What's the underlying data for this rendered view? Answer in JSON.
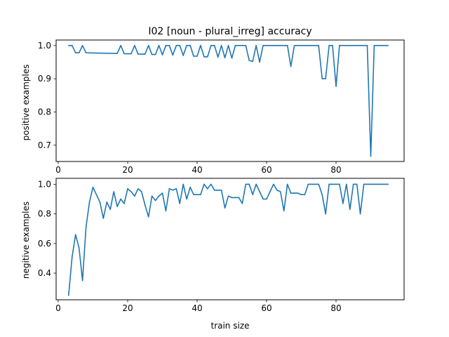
{
  "chart_data": [
    {
      "type": "line",
      "title": "I02 [noun - plural_irreg] accuracy",
      "xlabel": "",
      "ylabel": "positive examples",
      "xlim": [
        -0.6,
        99.6
      ],
      "ylim": [
        0.651,
        1.0165
      ],
      "xticks": [
        "0",
        "20",
        "40",
        "60",
        "80"
      ],
      "yticks": [
        "0.7",
        "0.8",
        "0.9",
        "1.0"
      ],
      "ytick_values": [
        0.7,
        0.8,
        0.9,
        1.0
      ],
      "grid": false,
      "color": "#1f77b4",
      "points": [
        [
          3,
          1.0
        ],
        [
          4,
          1.0
        ],
        [
          5,
          0.978
        ],
        [
          6,
          0.978
        ],
        [
          7,
          1.0
        ],
        [
          8,
          0.978
        ],
        [
          17,
          0.976
        ],
        [
          18,
          1.0
        ],
        [
          19,
          0.975
        ],
        [
          20,
          0.975
        ],
        [
          21,
          0.975
        ],
        [
          22,
          1.0
        ],
        [
          23,
          0.974
        ],
        [
          24,
          0.974
        ],
        [
          25,
          0.974
        ],
        [
          26,
          1.0
        ],
        [
          27,
          0.973
        ],
        [
          28,
          0.973
        ],
        [
          29,
          1.0
        ],
        [
          30,
          0.972
        ],
        [
          31,
          1.0
        ],
        [
          32,
          1.0
        ],
        [
          33,
          0.971
        ],
        [
          34,
          1.0
        ],
        [
          35,
          1.0
        ],
        [
          36,
          0.97
        ],
        [
          37,
          1.0
        ],
        [
          38,
          1.0
        ],
        [
          39,
          0.968
        ],
        [
          40,
          0.968
        ],
        [
          41,
          1.0
        ],
        [
          42,
          0.966
        ],
        [
          43,
          0.966
        ],
        [
          44,
          1.0
        ],
        [
          45,
          1.0
        ],
        [
          46,
          0.965
        ],
        [
          47,
          1.0
        ],
        [
          48,
          0.963
        ],
        [
          49,
          1.0
        ],
        [
          50,
          0.962
        ],
        [
          51,
          1.0
        ],
        [
          52,
          1.0
        ],
        [
          53,
          1.0
        ],
        [
          54,
          1.0
        ],
        [
          55,
          0.955
        ],
        [
          56,
          0.952
        ],
        [
          57,
          1.0
        ],
        [
          58,
          0.95
        ],
        [
          59,
          1.0
        ],
        [
          60,
          1.0
        ],
        [
          61,
          1.0
        ],
        [
          62,
          1.0
        ],
        [
          63,
          1.0
        ],
        [
          64,
          1.0
        ],
        [
          65,
          1.0
        ],
        [
          66,
          1.0
        ],
        [
          67,
          0.937
        ],
        [
          68,
          1.0
        ],
        [
          69,
          1.0
        ],
        [
          70,
          1.0
        ],
        [
          71,
          1.0
        ],
        [
          72,
          1.0
        ],
        [
          73,
          1.0
        ],
        [
          74,
          1.0
        ],
        [
          75,
          1.0
        ],
        [
          76,
          0.9
        ],
        [
          77,
          0.9
        ],
        [
          78,
          1.0
        ],
        [
          79,
          1.0
        ],
        [
          80,
          0.877
        ],
        [
          81,
          1.0
        ],
        [
          82,
          1.0
        ],
        [
          83,
          1.0
        ],
        [
          84,
          1.0
        ],
        [
          85,
          1.0
        ],
        [
          86,
          1.0
        ],
        [
          87,
          1.0
        ],
        [
          88,
          1.0
        ],
        [
          89,
          1.0
        ],
        [
          90,
          0.667
        ],
        [
          91,
          1.0
        ],
        [
          92,
          1.0
        ],
        [
          93,
          1.0
        ],
        [
          94,
          1.0
        ],
        [
          95,
          1.0
        ]
      ]
    },
    {
      "type": "line",
      "title": "",
      "xlabel": "train size",
      "ylabel": "negitive examples",
      "xlim": [
        -0.6,
        99.6
      ],
      "ylim": [
        0.22,
        1.04
      ],
      "xticks": [
        "0",
        "20",
        "40",
        "60",
        "80"
      ],
      "yticks": [
        "0.4",
        "0.6",
        "0.8",
        "1.0"
      ],
      "ytick_values": [
        0.4,
        0.6,
        0.8,
        1.0
      ],
      "grid": false,
      "color": "#1f77b4",
      "points": [
        [
          3,
          0.25
        ],
        [
          4,
          0.51
        ],
        [
          5,
          0.66
        ],
        [
          6,
          0.57
        ],
        [
          7,
          0.35
        ],
        [
          8,
          0.71
        ],
        [
          9,
          0.88
        ],
        [
          10,
          0.98
        ],
        [
          11,
          0.93
        ],
        [
          12,
          0.88
        ],
        [
          13,
          0.77
        ],
        [
          14,
          0.88
        ],
        [
          15,
          0.83
        ],
        [
          16,
          0.95
        ],
        [
          17,
          0.85
        ],
        [
          18,
          0.9
        ],
        [
          19,
          0.87
        ],
        [
          20,
          0.97
        ],
        [
          21,
          0.95
        ],
        [
          22,
          0.92
        ],
        [
          23,
          0.97
        ],
        [
          24,
          0.95
        ],
        [
          25,
          0.86
        ],
        [
          26,
          0.78
        ],
        [
          27,
          0.92
        ],
        [
          28,
          0.89
        ],
        [
          29,
          0.92
        ],
        [
          30,
          0.94
        ],
        [
          31,
          0.82
        ],
        [
          32,
          0.97
        ],
        [
          33,
          0.96
        ],
        [
          34,
          0.97
        ],
        [
          35,
          0.87
        ],
        [
          36,
          1.0
        ],
        [
          37,
          0.9
        ],
        [
          38,
          0.98
        ],
        [
          39,
          0.93
        ],
        [
          40,
          0.93
        ],
        [
          41,
          0.93
        ],
        [
          42,
          1.0
        ],
        [
          43,
          0.97
        ],
        [
          44,
          1.0
        ],
        [
          45,
          0.96
        ],
        [
          46,
          0.96
        ],
        [
          47,
          0.96
        ],
        [
          48,
          0.84
        ],
        [
          49,
          0.92
        ],
        [
          50,
          0.91
        ],
        [
          51,
          0.91
        ],
        [
          52,
          0.91
        ],
        [
          53,
          0.87
        ],
        [
          54,
          1.0
        ],
        [
          55,
          1.0
        ],
        [
          56,
          0.93
        ],
        [
          57,
          1.0
        ],
        [
          58,
          0.95
        ],
        [
          59,
          0.9
        ],
        [
          60,
          0.9
        ],
        [
          61,
          0.95
        ],
        [
          62,
          1.0
        ],
        [
          63,
          0.96
        ],
        [
          64,
          0.95
        ],
        [
          65,
          0.82
        ],
        [
          66,
          1.0
        ],
        [
          67,
          0.94
        ],
        [
          68,
          0.94
        ],
        [
          69,
          0.94
        ],
        [
          70,
          0.93
        ],
        [
          71,
          0.93
        ],
        [
          72,
          1.0
        ],
        [
          73,
          1.0
        ],
        [
          74,
          1.0
        ],
        [
          75,
          1.0
        ],
        [
          76,
          0.93
        ],
        [
          77,
          0.8
        ],
        [
          78,
          1.0
        ],
        [
          79,
          1.0
        ],
        [
          80,
          1.0
        ],
        [
          81,
          1.0
        ],
        [
          82,
          0.87
        ],
        [
          83,
          1.0
        ],
        [
          84,
          0.83
        ],
        [
          85,
          1.0
        ],
        [
          86,
          1.0
        ],
        [
          87,
          0.8
        ],
        [
          88,
          1.0
        ],
        [
          89,
          1.0
        ],
        [
          90,
          1.0
        ],
        [
          91,
          1.0
        ],
        [
          92,
          1.0
        ],
        [
          93,
          1.0
        ],
        [
          94,
          1.0
        ],
        [
          95,
          1.0
        ]
      ]
    }
  ]
}
